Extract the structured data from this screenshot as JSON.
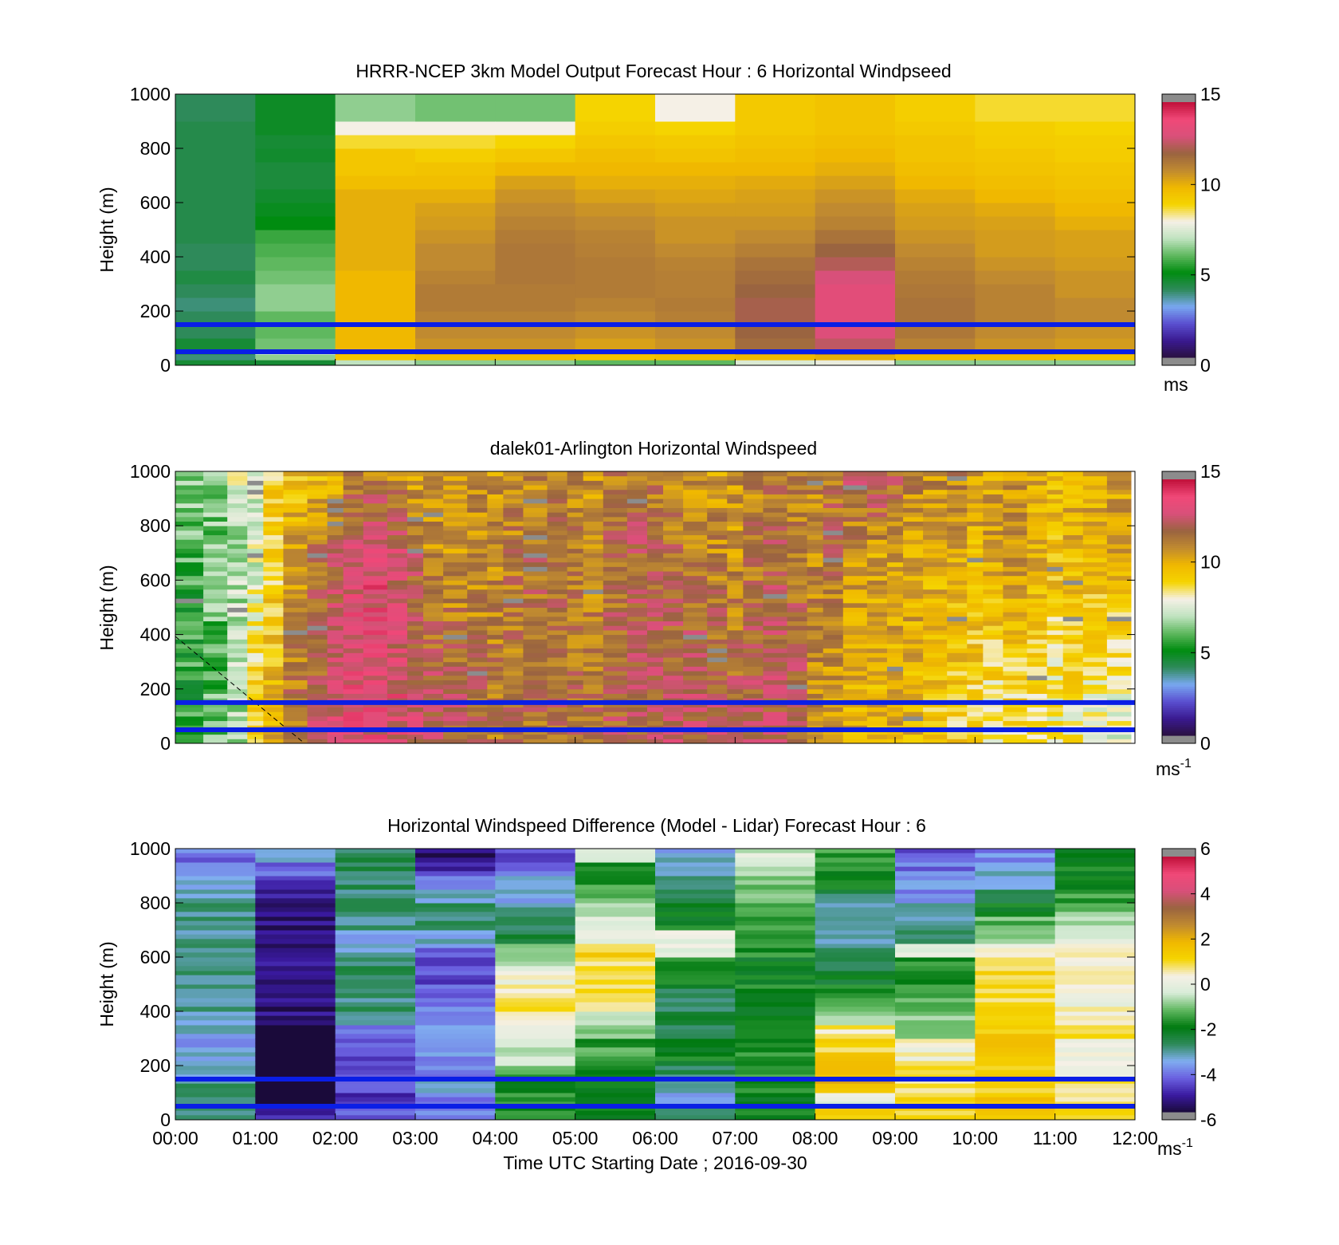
{
  "colors": {
    "hub_height_lines": "#0a1ee6",
    "missing": "#8c8c8c",
    "windspeed_scale": [
      "#2a1040",
      "#3a1a90",
      "#5a4fd0",
      "#79a8f0",
      "#2e8a5a",
      "#008c10",
      "#5fb85f",
      "#c0e3c0",
      "#f5f0e6",
      "#f5d400",
      "#f0b800",
      "#c08a30",
      "#9a6440",
      "#d8507a",
      "#f04878",
      "#c0103a"
    ],
    "difference_scale": [
      "#1a0a3a",
      "#3a1aa0",
      "#6a60e0",
      "#80aef0",
      "#2e8a5a",
      "#007a10",
      "#60b860",
      "#d8ecd8",
      "#f5f0e6",
      "#f5d400",
      "#f0b800",
      "#c08a30",
      "#9a6440",
      "#d8507a",
      "#f04878",
      "#c0103a"
    ]
  },
  "chart_data": [
    {
      "type": "heatmap",
      "title": "HRRR-NCEP 3km Model Output   Forecast Hour : 6 Horizontal Windpseed",
      "xlabel": "",
      "ylabel": "Height (m)",
      "xlim": [
        0,
        12
      ],
      "ylim": [
        0,
        1000
      ],
      "yticks": [
        "0",
        "200",
        "400",
        "600",
        "800",
        "1000"
      ],
      "colorbar": {
        "range": [
          0,
          15
        ],
        "ticks": [
          "0",
          "5",
          "10",
          "15"
        ],
        "unit": "ms",
        "unit_sup": ""
      },
      "hub_lines_m": [
        50,
        150
      ],
      "hours": [
        0,
        1,
        2,
        3,
        4,
        5,
        6,
        7,
        8,
        9,
        10,
        11
      ],
      "heights_m": [
        0,
        20,
        40,
        60,
        100,
        150,
        200,
        250,
        300,
        350,
        400,
        450,
        500,
        550,
        600,
        650,
        700,
        750,
        800,
        850,
        900
      ],
      "z": [
        [
          4.5,
          3.8,
          4.0,
          4.5,
          4.0,
          4.0,
          3.8,
          4.0,
          4.3,
          4.0,
          4.0,
          4.2,
          4.2,
          4.2,
          4.2,
          4.2,
          4.2,
          4.2,
          4.2,
          4.2,
          4.0
        ],
        [
          4.5,
          6.5,
          7.0,
          6.2,
          6.0,
          6.0,
          6.5,
          6.5,
          6.2,
          6.0,
          5.8,
          5.6,
          5.0,
          4.8,
          4.6,
          4.4,
          4.4,
          4.6,
          4.5,
          4.7,
          4.7
        ],
        [
          7.0,
          9.5,
          10.0,
          10.0,
          10.0,
          10.0,
          10.0,
          10.0,
          10.0,
          10.2,
          10.2,
          10.2,
          10.2,
          10.2,
          10.2,
          9.8,
          9.5,
          9.5,
          8.8,
          8.0,
          6.5
        ],
        [
          6.5,
          9.8,
          10.5,
          10.8,
          11.0,
          11.2,
          11.4,
          11.4,
          11.2,
          11.0,
          11.0,
          10.8,
          10.6,
          10.5,
          10.2,
          9.8,
          9.6,
          9.2,
          8.8,
          8.0,
          6.2
        ],
        [
          6.5,
          9.8,
          10.6,
          10.8,
          11.0,
          11.2,
          11.4,
          11.4,
          11.5,
          11.5,
          11.5,
          11.4,
          11.2,
          11.0,
          10.8,
          10.5,
          10.0,
          9.5,
          9.0,
          8.0,
          6.2
        ],
        [
          6.0,
          9.6,
          10.3,
          10.5,
          10.8,
          11.0,
          11.2,
          11.4,
          11.4,
          11.4,
          11.3,
          11.2,
          11.0,
          10.8,
          10.5,
          10.2,
          10.0,
          9.8,
          9.5,
          9.2,
          9.0
        ],
        [
          6.0,
          9.8,
          10.4,
          10.8,
          11.0,
          11.3,
          11.4,
          11.3,
          11.3,
          11.2,
          11.0,
          10.8,
          10.8,
          10.6,
          10.4,
          10.2,
          10.0,
          9.6,
          9.4,
          9.0,
          8.0
        ],
        [
          7.5,
          10.0,
          11.0,
          11.8,
          12.0,
          12.2,
          12.2,
          12.0,
          11.8,
          11.6,
          11.3,
          11.0,
          10.8,
          10.6,
          10.5,
          10.3,
          10.0,
          9.8,
          9.6,
          9.4,
          9.4
        ],
        [
          7.8,
          10.2,
          11.8,
          12.6,
          13.2,
          13.4,
          13.4,
          13.4,
          13.0,
          12.4,
          12.0,
          11.6,
          11.2,
          11.0,
          10.8,
          10.5,
          10.2,
          10.0,
          9.8,
          9.6,
          9.6
        ],
        [
          6.5,
          9.8,
          10.8,
          11.2,
          11.5,
          11.6,
          11.6,
          11.5,
          11.4,
          11.2,
          11.0,
          10.8,
          10.6,
          10.5,
          10.3,
          10.0,
          9.8,
          9.6,
          9.6,
          9.4,
          9.2
        ],
        [
          6.5,
          9.8,
          10.6,
          10.8,
          11.0,
          11.2,
          11.2,
          11.2,
          11.0,
          10.8,
          10.6,
          10.6,
          10.5,
          10.3,
          10.0,
          9.8,
          9.6,
          9.5,
          9.3,
          9.2,
          8.8
        ],
        [
          6.5,
          9.6,
          10.5,
          10.6,
          10.8,
          11.0,
          11.0,
          10.8,
          10.8,
          10.6,
          10.5,
          10.5,
          10.2,
          10.0,
          9.8,
          9.6,
          9.5,
          9.3,
          9.2,
          9.0,
          8.8
        ]
      ]
    },
    {
      "type": "heatmap",
      "title": "dalek01-Arlington  Horizontal Windspeed",
      "xlabel": "",
      "ylabel": "Height (m)",
      "xlim": [
        0,
        12
      ],
      "ylim": [
        0,
        1000
      ],
      "yticks": [
        "0",
        "200",
        "400",
        "600",
        "800",
        "1000"
      ],
      "colorbar": {
        "range": [
          0,
          15
        ],
        "ticks": [
          "0",
          "5",
          "10",
          "15"
        ],
        "unit": "ms",
        "unit_sup": "-1"
      },
      "hub_lines_m": [
        50,
        150
      ],
      "profile_x": [
        0.2,
        0.5,
        0.8,
        1.0,
        1.2,
        1.5,
        1.8,
        2.0,
        2.2,
        2.5,
        2.8,
        3.0,
        3.2,
        3.5,
        3.8,
        4.0,
        4.2,
        4.5,
        4.8,
        5.0,
        5.2,
        5.5,
        5.8,
        6.0,
        6.2,
        6.5,
        6.8,
        7.0,
        7.2,
        7.5,
        7.8,
        8.0,
        8.2,
        8.5,
        8.8,
        9.0,
        9.2,
        9.5,
        9.8,
        10.0,
        10.2,
        10.5,
        10.8,
        11.0,
        11.2,
        11.5,
        11.8
      ],
      "profile_mean": [
        5.8,
        6.2,
        7.0,
        7.5,
        9.0,
        10.5,
        11.5,
        12.3,
        13.2,
        13.5,
        13.0,
        12.0,
        11.0,
        10.8,
        10.8,
        11.0,
        11.5,
        11.8,
        11.5,
        11.4,
        11.0,
        11.8,
        12.2,
        12.0,
        11.8,
        11.5,
        11.2,
        10.8,
        11.5,
        12.0,
        11.6,
        11.2,
        11.8,
        10.8,
        10.6,
        10.5,
        10.5,
        10.2,
        10.2,
        10.0,
        10.4,
        10.8,
        10.0,
        9.8,
        10.0,
        10.2,
        10.4
      ],
      "profile_low": [
        5.5,
        6.0,
        7.0,
        9.0,
        10.0,
        11.5,
        12.3,
        13.0,
        13.2,
        13.3,
        13.2,
        12.8,
        12.5,
        12.2,
        11.8,
        11.5,
        11.5,
        11.6,
        11.8,
        11.7,
        11.6,
        12.0,
        12.2,
        12.3,
        12.4,
        12.5,
        12.4,
        12.2,
        12.4,
        12.5,
        12.2,
        11.0,
        10.5,
        10.2,
        10.0,
        10.2,
        10.0,
        9.5,
        9.2,
        9.0,
        8.5,
        8.8,
        8.5,
        8.2,
        8.5,
        8.0,
        7.8
      ],
      "profile_top": [
        6.5,
        6.5,
        7.5,
        7.5,
        9.0,
        9.5,
        9.8,
        10.0,
        11.0,
        11.0,
        10.8,
        10.5,
        10.5,
        11.0,
        11.2,
        10.8,
        10.8,
        11.0,
        11.2,
        11.0,
        10.8,
        11.4,
        11.6,
        11.2,
        11.0,
        10.8,
        10.6,
        10.8,
        11.2,
        11.6,
        11.2,
        11.0,
        11.6,
        12.4,
        12.8,
        12.2,
        11.4,
        11.0,
        11.2,
        10.8,
        10.6,
        10.8,
        10.2,
        10.0,
        10.2,
        10.4,
        10.6
      ]
    },
    {
      "type": "heatmap",
      "title": "Horizontal Windspeed Difference (Model - Lidar) Forecast Hour : 6",
      "xlabel": "Time UTC  Starting Date ; 2016-09-30",
      "ylabel": "Height (m)",
      "xlim": [
        0,
        12
      ],
      "ylim": [
        0,
        1000
      ],
      "xticks": [
        "00:00",
        "01:00",
        "02:00",
        "03:00",
        "04:00",
        "05:00",
        "06:00",
        "07:00",
        "08:00",
        "09:00",
        "10:00",
        "11:00",
        "12:00"
      ],
      "yticks": [
        "0",
        "200",
        "400",
        "600",
        "800",
        "1000"
      ],
      "colorbar": {
        "range": [
          -6,
          6
        ],
        "ticks": [
          "-6",
          "-4",
          "-2",
          "0",
          "2",
          "4",
          "6"
        ],
        "unit": "ms",
        "unit_sup": "-1"
      },
      "hub_lines_m": [
        50,
        150
      ],
      "hours": [
        0,
        1,
        2,
        3,
        4,
        5,
        6,
        7,
        8,
        9,
        10,
        11
      ],
      "heights_m": [
        0,
        50,
        100,
        150,
        200,
        250,
        300,
        350,
        400,
        450,
        500,
        550,
        600,
        650,
        700,
        750,
        800,
        850,
        900,
        950
      ],
      "z": [
        [
          -3.0,
          -3.2,
          -3.0,
          -3.5,
          -3.5,
          -3.8,
          -3.5,
          -3.5,
          -3.2,
          -3.2,
          -3.0,
          -3.0,
          -3.2,
          -3.2,
          -3.0,
          -3.0,
          -3.2,
          -3.5,
          -3.8,
          -4.2
        ],
        [
          -5.0,
          -6.5,
          -6.5,
          -6.5,
          -6.5,
          -6.5,
          -6.5,
          -5.5,
          -5.5,
          -5.5,
          -5.5,
          -5.5,
          -5.5,
          -5.5,
          -5.5,
          -5.5,
          -5.3,
          -5.0,
          -4.2,
          -3.8
        ],
        [
          -4.5,
          -4.8,
          -4.5,
          -4.8,
          -4.6,
          -4.4,
          -4.2,
          -3.0,
          -3.0,
          -3.0,
          -2.8,
          -2.8,
          -3.2,
          -3.5,
          -3.0,
          -2.8,
          -3.0,
          -2.8,
          -2.8,
          -2.8
        ],
        [
          -4.0,
          -4.2,
          -3.5,
          -4.0,
          -3.8,
          -3.8,
          -3.8,
          -4.0,
          -4.2,
          -4.5,
          -4.6,
          -4.8,
          -4.2,
          -3.5,
          -3.0,
          -3.0,
          -3.5,
          -4.2,
          -5.0,
          -5.5
        ],
        [
          -1.8,
          -1.8,
          -1.8,
          -1.5,
          -0.5,
          -0.5,
          -0.2,
          0.8,
          1.2,
          0.8,
          0.2,
          -0.5,
          -1.0,
          -2.5,
          -2.8,
          -3.0,
          -3.5,
          -3.8,
          -4.2,
          -4.8
        ],
        [
          -2.2,
          -2.2,
          -2.0,
          -1.6,
          -1.5,
          -1.5,
          -1.2,
          -0.8,
          0.5,
          1.0,
          0.8,
          1.0,
          1.2,
          0.2,
          -0.3,
          -1.0,
          -1.2,
          -1.5,
          -2.0,
          0.0
        ],
        [
          -3.0,
          -3.5,
          -2.8,
          -2.8,
          -2.0,
          -2.2,
          -2.5,
          -2.5,
          -2.8,
          -2.5,
          -1.6,
          -1.5,
          0.0,
          0.0,
          -2.0,
          -2.2,
          -2.5,
          -3.0,
          -3.5,
          -3.5
        ],
        [
          -2.0,
          -2.0,
          -1.8,
          -1.6,
          -1.8,
          -2.0,
          -2.2,
          -2.0,
          -2.0,
          -1.8,
          -2.0,
          -2.0,
          -1.8,
          -1.5,
          -1.5,
          -1.5,
          -1.2,
          -1.0,
          -0.5,
          -0.3
        ],
        [
          1.2,
          0.0,
          2.0,
          2.0,
          1.8,
          1.2,
          0.8,
          -0.5,
          -1.0,
          -2.0,
          -2.2,
          -2.8,
          -3.0,
          -3.2,
          -3.2,
          -3.0,
          -2.8,
          -2.0,
          -1.8,
          -1.5
        ],
        [
          1.2,
          1.0,
          0.8,
          0.8,
          0.5,
          0.2,
          -0.8,
          -1.0,
          -1.2,
          -1.5,
          -1.8,
          -1.8,
          0.0,
          -3.0,
          -3.0,
          -3.5,
          -4.0,
          -4.0,
          -4.2,
          -4.5
        ],
        [
          1.5,
          1.5,
          1.2,
          1.2,
          1.5,
          1.5,
          1.4,
          1.2,
          1.0,
          1.0,
          1.2,
          0.8,
          0.5,
          -0.8,
          -1.2,
          -2.0,
          -3.0,
          -3.5,
          -3.5,
          -4.0
        ],
        [
          1.0,
          0.5,
          0.8,
          0.5,
          0.2,
          0.2,
          0.8,
          0.5,
          0.3,
          0.2,
          0.3,
          0.2,
          0.3,
          0.0,
          -0.5,
          -1.0,
          -1.5,
          -1.8,
          -1.8,
          -2.0
        ]
      ]
    }
  ]
}
